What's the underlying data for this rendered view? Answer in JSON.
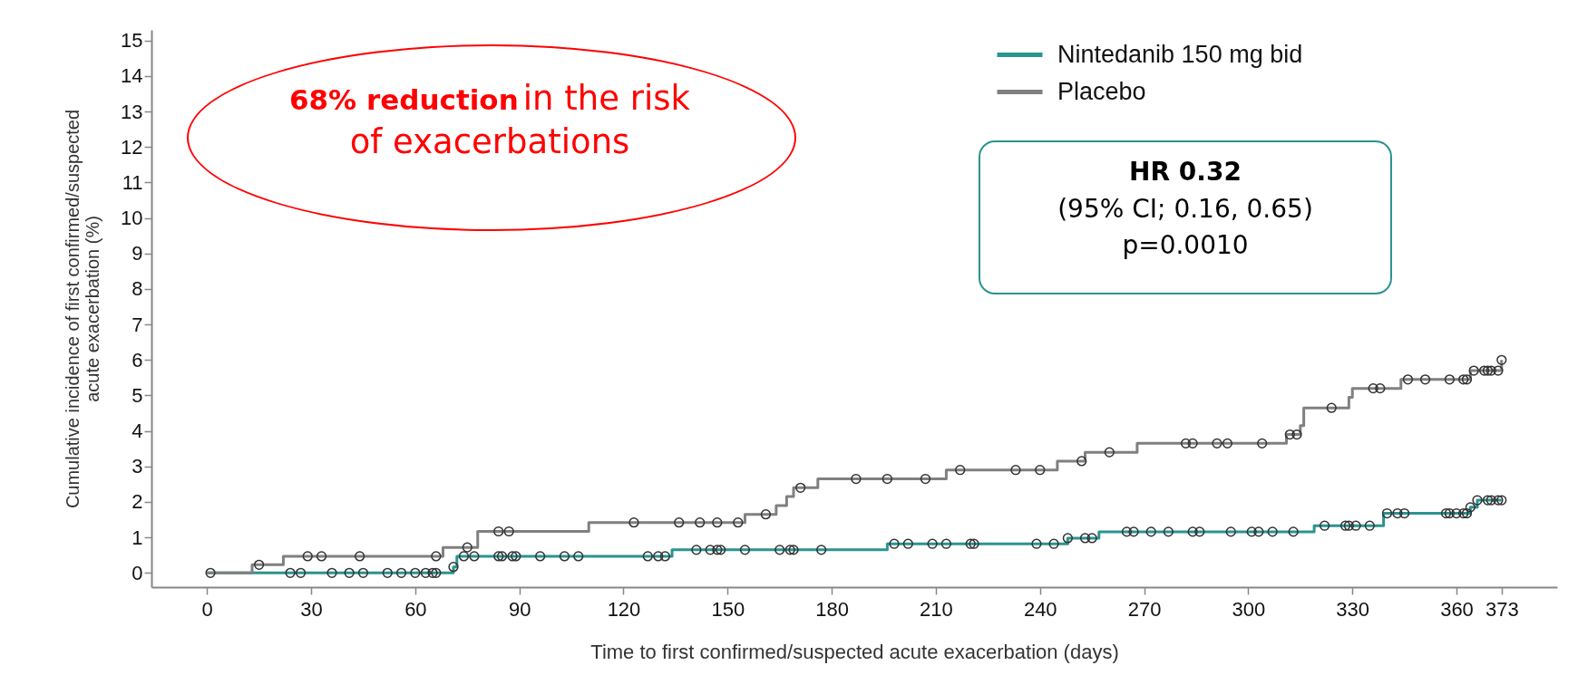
{
  "chart_data": {
    "type": "step",
    "xlabel": "Time to first confirmed/suspected acute exacerbation (days)",
    "ylabel": "Cumulative incidence of first confirmed/suspected\nacute exacerbation (%)",
    "xlim": [
      -16,
      389
    ],
    "ylim": [
      -0.4,
      15.3
    ],
    "xticks": [
      0,
      30,
      60,
      90,
      120,
      150,
      180,
      210,
      240,
      270,
      300,
      330,
      360,
      373
    ],
    "yticks": [
      0,
      1,
      2,
      3,
      4,
      5,
      6,
      7,
      8,
      9,
      10,
      11,
      12,
      13,
      14,
      15
    ],
    "grid": false,
    "legend": "top right",
    "marker": "none",
    "annotations": [
      "68% reduction",
      "in the risk of exacerbations",
      "HR 0.32",
      "(95% CI; 0.16, 0.65)",
      "p=0.0010"
    ],
    "series": [
      {
        "name": "Nintedanib 150 mg bid",
        "color": "#2a9490",
        "x": [
          0,
          71,
          72,
          134,
          196,
          248,
          257,
          319,
          339,
          364,
          366,
          373
        ],
        "values": [
          0,
          0.17,
          0.47,
          0.65,
          0.82,
          0.98,
          1.16,
          1.33,
          1.68,
          1.85,
          2.05,
          2.05
        ]
      },
      {
        "name": "Placebo",
        "color": "#808080",
        "x": [
          0,
          13,
          22,
          68,
          78,
          110,
          155,
          164,
          167,
          169,
          176,
          213,
          245,
          253,
          268,
          311,
          315,
          316,
          329,
          330,
          344,
          364,
          373
        ],
        "values": [
          0,
          0.23,
          0.47,
          0.72,
          1.17,
          1.42,
          1.65,
          1.9,
          2.15,
          2.4,
          2.65,
          2.9,
          3.15,
          3.4,
          3.65,
          3.9,
          4.15,
          4.65,
          4.95,
          5.2,
          5.45,
          5.7,
          6.0
        ]
      },
      {
        "color": "#333333",
        "type": "scatter",
        "marker": "circle",
        "x": [
          1,
          24,
          27,
          36,
          41,
          45,
          52,
          56,
          60,
          63,
          65,
          66,
          71,
          74,
          77,
          84,
          85,
          88,
          89,
          96,
          103,
          107,
          127,
          130,
          132,
          141,
          145,
          147,
          148,
          155,
          165,
          168,
          169,
          177,
          198,
          202,
          209,
          213,
          220,
          221,
          239,
          244,
          248,
          253,
          255,
          265,
          267,
          272,
          277,
          284,
          286,
          295,
          301,
          303,
          307,
          313,
          322,
          328,
          329,
          331,
          335,
          340,
          343,
          345,
          357,
          358,
          360,
          362,
          363,
          364,
          366,
          369,
          370,
          372,
          373
        ],
        "values": [
          0,
          0,
          0,
          0,
          0,
          0,
          0,
          0,
          0,
          0,
          0,
          0,
          0.17,
          0.47,
          0.47,
          0.47,
          0.47,
          0.47,
          0.47,
          0.47,
          0.47,
          0.47,
          0.47,
          0.47,
          0.47,
          0.65,
          0.65,
          0.65,
          0.65,
          0.65,
          0.65,
          0.65,
          0.65,
          0.65,
          0.82,
          0.82,
          0.82,
          0.82,
          0.82,
          0.82,
          0.82,
          0.82,
          0.98,
          0.98,
          0.98,
          1.16,
          1.16,
          1.16,
          1.16,
          1.16,
          1.16,
          1.16,
          1.16,
          1.16,
          1.16,
          1.16,
          1.33,
          1.33,
          1.33,
          1.33,
          1.33,
          1.68,
          1.68,
          1.68,
          1.68,
          1.68,
          1.68,
          1.68,
          1.68,
          1.85,
          2.05,
          2.05,
          2.05,
          2.05,
          2.05
        ]
      },
      {
        "color": "#333333",
        "type": "scatter",
        "marker": "circle",
        "x": [
          15,
          29,
          33,
          44,
          66,
          75,
          84,
          87,
          123,
          136,
          142,
          147,
          153,
          161,
          171,
          187,
          196,
          207,
          217,
          233,
          240,
          252,
          260,
          282,
          284,
          291,
          294,
          304,
          312,
          314,
          324,
          336,
          338,
          346,
          351,
          358,
          362,
          363,
          365,
          368,
          369,
          370,
          372,
          373
        ],
        "values": [
          0.23,
          0.47,
          0.47,
          0.47,
          0.47,
          0.72,
          1.17,
          1.17,
          1.42,
          1.42,
          1.42,
          1.42,
          1.42,
          1.65,
          2.4,
          2.65,
          2.65,
          2.65,
          2.9,
          2.9,
          2.9,
          3.15,
          3.4,
          3.65,
          3.65,
          3.65,
          3.65,
          3.65,
          3.9,
          3.9,
          4.65,
          5.2,
          5.2,
          5.45,
          5.45,
          5.45,
          5.45,
          5.45,
          5.7,
          5.7,
          5.7,
          5.7,
          5.7,
          6.0
        ]
      }
    ]
  }
}
